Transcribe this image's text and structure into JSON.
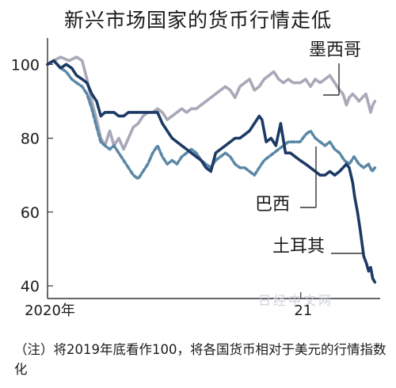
{
  "title": "新兴市场国家的货币行情走低",
  "note": "（注）将2019年底看作100，将各国货币相对于美元的行情指数化",
  "watermark": "日经中文网",
  "chart_data": {
    "type": "line",
    "title": "新兴市场国家的货币行情走低",
    "xlabel": "",
    "ylabel": "",
    "ylim": [
      37,
      105
    ],
    "xlim": [
      "2020-01-01",
      "2021-04-20"
    ],
    "y_ticks": [
      40,
      60,
      80,
      100
    ],
    "x_tick_labels": [
      {
        "date": "2020-01-01",
        "label": "2020年"
      },
      {
        "date": "2021-01-01",
        "label": "21"
      }
    ],
    "grid": false,
    "series": [
      {
        "name": "墨西哥",
        "color": "#a8a8b8",
        "style": "solid",
        "points": [
          [
            "2020-01-01",
            100
          ],
          [
            "2020-01-10",
            101
          ],
          [
            "2020-01-20",
            102
          ],
          [
            "2020-02-01",
            101
          ],
          [
            "2020-02-12",
            102
          ],
          [
            "2020-02-20",
            101
          ],
          [
            "2020-02-27",
            96
          ],
          [
            "2020-03-05",
            90
          ],
          [
            "2020-03-12",
            85
          ],
          [
            "2020-03-18",
            80
          ],
          [
            "2020-03-24",
            78
          ],
          [
            "2020-03-31",
            82
          ],
          [
            "2020-04-06",
            78
          ],
          [
            "2020-04-13",
            80
          ],
          [
            "2020-04-20",
            77
          ],
          [
            "2020-04-27",
            80
          ],
          [
            "2020-05-04",
            83
          ],
          [
            "2020-05-11",
            84
          ],
          [
            "2020-05-18",
            86
          ],
          [
            "2020-05-25",
            87
          ],
          [
            "2020-06-01",
            87
          ],
          [
            "2020-06-08",
            88
          ],
          [
            "2020-06-15",
            87
          ],
          [
            "2020-06-22",
            85
          ],
          [
            "2020-06-29",
            86
          ],
          [
            "2020-07-06",
            87
          ],
          [
            "2020-07-13",
            88
          ],
          [
            "2020-07-20",
            87
          ],
          [
            "2020-07-27",
            88
          ],
          [
            "2020-08-03",
            88
          ],
          [
            "2020-08-10",
            89
          ],
          [
            "2020-08-17",
            90
          ],
          [
            "2020-08-24",
            91
          ],
          [
            "2020-08-31",
            92
          ],
          [
            "2020-09-07",
            93
          ],
          [
            "2020-09-14",
            94
          ],
          [
            "2020-09-21",
            93
          ],
          [
            "2020-09-28",
            91
          ],
          [
            "2020-10-05",
            94
          ],
          [
            "2020-10-12",
            95
          ],
          [
            "2020-10-19",
            96
          ],
          [
            "2020-10-26",
            93
          ],
          [
            "2020-11-02",
            94
          ],
          [
            "2020-11-09",
            96
          ],
          [
            "2020-11-16",
            97
          ],
          [
            "2020-11-23",
            98
          ],
          [
            "2020-11-30",
            96
          ],
          [
            "2020-12-07",
            95
          ],
          [
            "2020-12-14",
            96
          ],
          [
            "2020-12-21",
            95
          ],
          [
            "2020-12-31",
            95
          ],
          [
            "2021-01-08",
            96
          ],
          [
            "2021-01-15",
            94
          ],
          [
            "2021-01-22",
            96
          ],
          [
            "2021-01-29",
            95
          ],
          [
            "2021-02-05",
            96
          ],
          [
            "2021-02-12",
            97
          ],
          [
            "2021-02-19",
            95
          ],
          [
            "2021-02-26",
            93
          ],
          [
            "2021-03-03",
            92
          ],
          [
            "2021-03-08",
            89
          ],
          [
            "2021-03-12",
            91
          ],
          [
            "2021-03-17",
            92
          ],
          [
            "2021-03-22",
            91
          ],
          [
            "2021-03-26",
            90
          ],
          [
            "2021-03-31",
            91
          ],
          [
            "2021-04-05",
            92
          ],
          [
            "2021-04-08",
            90
          ],
          [
            "2021-04-12",
            87
          ],
          [
            "2021-04-15",
            89
          ],
          [
            "2021-04-18",
            90
          ]
        ],
        "label": {
          "text": "墨西哥",
          "tx": 390,
          "ty": 70,
          "lx": 428,
          "ly1": 80,
          "ly2": 120
        }
      },
      {
        "name": "巴西",
        "color": "#5b87a6",
        "style": "dashed",
        "points": [
          [
            "2020-01-01",
            100
          ],
          [
            "2020-01-10",
            101
          ],
          [
            "2020-01-20",
            99
          ],
          [
            "2020-01-28",
            98
          ],
          [
            "2020-02-05",
            96
          ],
          [
            "2020-02-12",
            95
          ],
          [
            "2020-02-20",
            94
          ],
          [
            "2020-02-27",
            92
          ],
          [
            "2020-03-05",
            88
          ],
          [
            "2020-03-12",
            83
          ],
          [
            "2020-03-18",
            79
          ],
          [
            "2020-03-24",
            78
          ],
          [
            "2020-03-31",
            77
          ],
          [
            "2020-04-06",
            78
          ],
          [
            "2020-04-13",
            76
          ],
          [
            "2020-04-20",
            74
          ],
          [
            "2020-04-27",
            72
          ],
          [
            "2020-05-04",
            70
          ],
          [
            "2020-05-11",
            69
          ],
          [
            "2020-05-18",
            71
          ],
          [
            "2020-05-25",
            73
          ],
          [
            "2020-06-01",
            76
          ],
          [
            "2020-06-08",
            78
          ],
          [
            "2020-06-15",
            75
          ],
          [
            "2020-06-22",
            73
          ],
          [
            "2020-06-29",
            74
          ],
          [
            "2020-07-06",
            73
          ],
          [
            "2020-07-13",
            75
          ],
          [
            "2020-07-20",
            76
          ],
          [
            "2020-07-27",
            77
          ],
          [
            "2020-08-03",
            76
          ],
          [
            "2020-08-10",
            74
          ],
          [
            "2020-08-17",
            73
          ],
          [
            "2020-08-24",
            72
          ],
          [
            "2020-08-31",
            74
          ],
          [
            "2020-09-07",
            75
          ],
          [
            "2020-09-14",
            76
          ],
          [
            "2020-09-21",
            75
          ],
          [
            "2020-09-28",
            73
          ],
          [
            "2020-10-05",
            72
          ],
          [
            "2020-10-12",
            72
          ],
          [
            "2020-10-19",
            71
          ],
          [
            "2020-10-26",
            70
          ],
          [
            "2020-11-02",
            72
          ],
          [
            "2020-11-09",
            74
          ],
          [
            "2020-11-16",
            75
          ],
          [
            "2020-11-23",
            76
          ],
          [
            "2020-11-30",
            77
          ],
          [
            "2020-12-07",
            78
          ],
          [
            "2020-12-14",
            79
          ],
          [
            "2020-12-21",
            79
          ],
          [
            "2020-12-31",
            79
          ],
          [
            "2021-01-08",
            81
          ],
          [
            "2021-01-15",
            82
          ],
          [
            "2021-01-22",
            80
          ],
          [
            "2021-01-29",
            79
          ],
          [
            "2021-02-05",
            78
          ],
          [
            "2021-02-12",
            79
          ],
          [
            "2021-02-19",
            77
          ],
          [
            "2021-02-26",
            76
          ],
          [
            "2021-03-05",
            74
          ],
          [
            "2021-03-12",
            73
          ],
          [
            "2021-03-19",
            75
          ],
          [
            "2021-03-26",
            73
          ],
          [
            "2021-04-02",
            72
          ],
          [
            "2021-04-09",
            73
          ],
          [
            "2021-04-14",
            71
          ],
          [
            "2021-04-18",
            72
          ]
        ],
        "label": {
          "text": "巴西",
          "tx": 322,
          "ty": 265,
          "lx": 399,
          "ly1": 185,
          "ly2": 262
        }
      },
      {
        "name": "土耳其",
        "color": "#1c3a64",
        "style": "solid",
        "points": [
          [
            "2020-01-01",
            100
          ],
          [
            "2020-01-10",
            101
          ],
          [
            "2020-01-20",
            99
          ],
          [
            "2020-01-28",
            100
          ],
          [
            "2020-02-05",
            99
          ],
          [
            "2020-02-12",
            97
          ],
          [
            "2020-02-20",
            96
          ],
          [
            "2020-02-27",
            95
          ],
          [
            "2020-03-05",
            92
          ],
          [
            "2020-03-12",
            90
          ],
          [
            "2020-03-18",
            86
          ],
          [
            "2020-03-24",
            87
          ],
          [
            "2020-03-31",
            87
          ],
          [
            "2020-04-06",
            87
          ],
          [
            "2020-04-13",
            86
          ],
          [
            "2020-04-20",
            86
          ],
          [
            "2020-04-27",
            87
          ],
          [
            "2020-05-04",
            87
          ],
          [
            "2020-05-11",
            87
          ],
          [
            "2020-05-18",
            87
          ],
          [
            "2020-05-25",
            87
          ],
          [
            "2020-06-01",
            87
          ],
          [
            "2020-06-08",
            87
          ],
          [
            "2020-06-15",
            84
          ],
          [
            "2020-06-22",
            82
          ],
          [
            "2020-06-29",
            80
          ],
          [
            "2020-07-06",
            79
          ],
          [
            "2020-07-13",
            78
          ],
          [
            "2020-07-20",
            77
          ],
          [
            "2020-07-27",
            76
          ],
          [
            "2020-08-03",
            75
          ],
          [
            "2020-08-10",
            74
          ],
          [
            "2020-08-17",
            72
          ],
          [
            "2020-08-24",
            71
          ],
          [
            "2020-08-31",
            76
          ],
          [
            "2020-09-07",
            77
          ],
          [
            "2020-09-14",
            78
          ],
          [
            "2020-09-21",
            79
          ],
          [
            "2020-09-28",
            80
          ],
          [
            "2020-10-05",
            80
          ],
          [
            "2020-10-12",
            81
          ],
          [
            "2020-10-19",
            82
          ],
          [
            "2020-10-26",
            84
          ],
          [
            "2020-11-02",
            86
          ],
          [
            "2020-11-06",
            85
          ],
          [
            "2020-11-12",
            79
          ],
          [
            "2020-11-19",
            80
          ],
          [
            "2020-11-26",
            78
          ],
          [
            "2020-12-03",
            84
          ],
          [
            "2020-12-10",
            76
          ],
          [
            "2020-12-17",
            76
          ],
          [
            "2020-12-24",
            75
          ],
          [
            "2020-12-31",
            74
          ],
          [
            "2021-01-08",
            73
          ],
          [
            "2021-01-15",
            72
          ],
          [
            "2021-01-22",
            71
          ],
          [
            "2021-01-29",
            70
          ],
          [
            "2021-02-05",
            70
          ],
          [
            "2021-02-12",
            71
          ],
          [
            "2021-02-19",
            70
          ],
          [
            "2021-02-26",
            71
          ],
          [
            "2021-03-03",
            72
          ],
          [
            "2021-03-08",
            73
          ],
          [
            "2021-03-12",
            72
          ],
          [
            "2021-03-17",
            68
          ],
          [
            "2021-03-20",
            64
          ],
          [
            "2021-03-24",
            60
          ],
          [
            "2021-03-28",
            55
          ],
          [
            "2021-04-02",
            48
          ],
          [
            "2021-04-06",
            46
          ],
          [
            "2021-04-09",
            44
          ],
          [
            "2021-04-12",
            45
          ],
          [
            "2021-04-15",
            42
          ],
          [
            "2021-04-18",
            41
          ]
        ],
        "label": {
          "text": "土耳其",
          "tx": 344,
          "ty": 318,
          "lx1": 418,
          "lx2": 460,
          "ly": 320
        }
      }
    ]
  }
}
